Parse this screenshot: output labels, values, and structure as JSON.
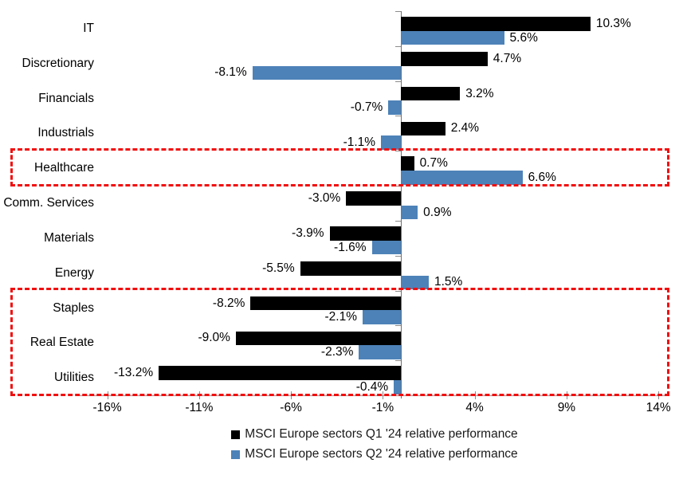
{
  "chart_data": {
    "type": "bar",
    "orientation": "horizontal",
    "title": "",
    "categories": [
      "IT",
      "Discretionary",
      "Financials",
      "Industrials",
      "Healthcare",
      "Comm. Services",
      "Materials",
      "Energy",
      "Staples",
      "Real Estate",
      "Utilities"
    ],
    "series": [
      {
        "name": "MSCI Europe sectors Q1 '24 relative performance",
        "color": "#000000",
        "values": [
          10.3,
          4.7,
          3.2,
          2.4,
          0.7,
          -3.0,
          -3.9,
          -5.5,
          -8.2,
          -9.0,
          -13.2
        ],
        "labels": [
          "10.3%",
          "4.7%",
          "3.2%",
          "2.4%",
          "0.7%",
          "-3.0%",
          "-3.9%",
          "-5.5%",
          "-8.2%",
          "-9.0%",
          "-13.2%"
        ]
      },
      {
        "name": "MSCI Europe sectors Q2 '24 relative performance",
        "color": "#4d82b8",
        "values": [
          5.6,
          -8.1,
          -0.7,
          -1.1,
          6.6,
          0.9,
          -1.6,
          1.5,
          -2.1,
          -2.3,
          -0.4
        ],
        "labels": [
          "5.6%",
          "-8.1%",
          "-0.7%",
          "-1.1%",
          "6.6%",
          "0.9%",
          "-1.6%",
          "1.5%",
          "-2.1%",
          "-2.3%",
          "-0.4%"
        ]
      }
    ],
    "x_ticks": {
      "labels": [
        "-16%",
        "-11%",
        "-6%",
        "-1%",
        "4%",
        "9%",
        "14%"
      ],
      "values": [
        -16,
        -11,
        -6,
        -1,
        4,
        9,
        14
      ]
    },
    "xlim": [
      -17.5,
      14.6
    ],
    "grid": false,
    "legend_position": "bottom",
    "highlight_color": "#f10e0e",
    "highlights": [
      {
        "sectors": [
          "Healthcare"
        ],
        "start_index": 4,
        "end_index": 4
      },
      {
        "sectors": [
          "Staples",
          "Real Estate",
          "Utilities"
        ],
        "start_index": 8,
        "end_index": 10
      }
    ]
  }
}
